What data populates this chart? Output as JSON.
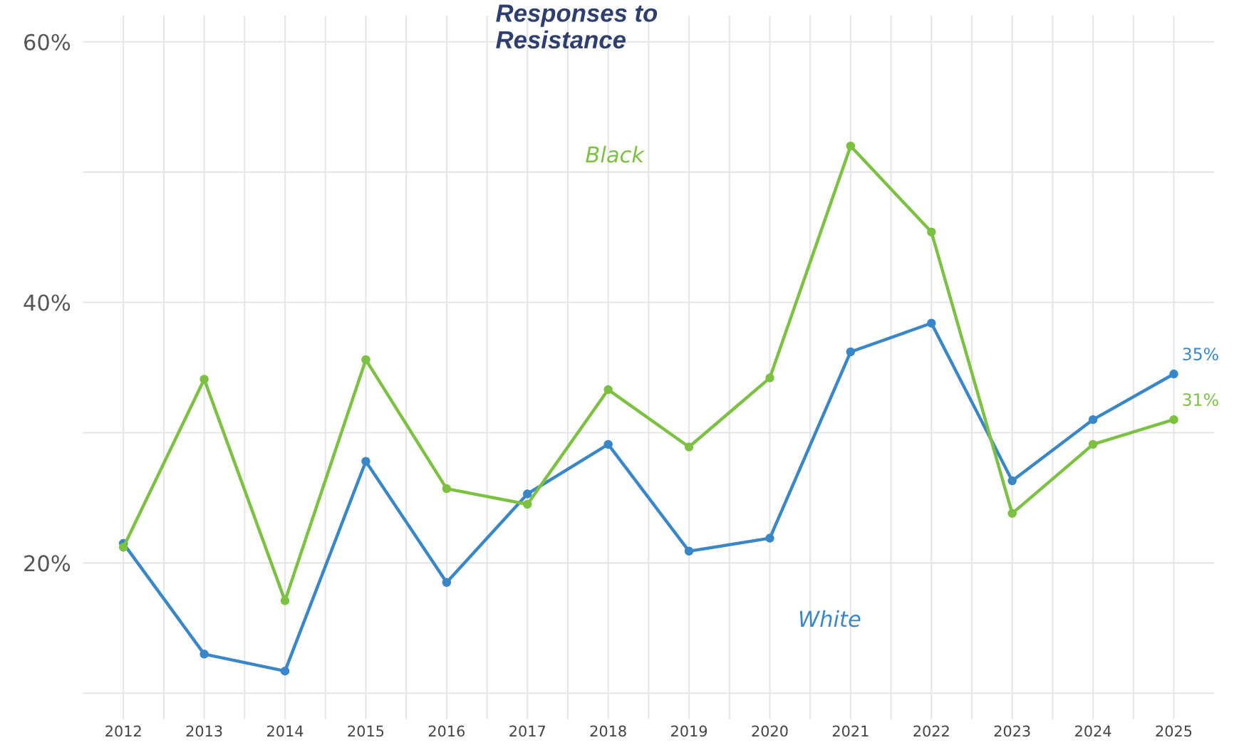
{
  "chart_data": {
    "type": "line",
    "title": "Responses to\nResistance",
    "x": [
      2012,
      2013,
      2014,
      2015,
      2016,
      2017,
      2018,
      2019,
      2020,
      2021,
      2022,
      2023,
      2024,
      2025
    ],
    "series": [
      {
        "name": "Black",
        "color": "#7dc142",
        "values": [
          21.2,
          34.1,
          17.1,
          35.6,
          25.7,
          24.5,
          33.3,
          28.9,
          34.2,
          52.0,
          45.4,
          23.8,
          29.1,
          31.0
        ]
      },
      {
        "name": "White",
        "color": "#3a87c8",
        "values": [
          21.5,
          13.0,
          11.7,
          27.8,
          18.5,
          25.3,
          29.1,
          20.9,
          21.9,
          36.2,
          38.4,
          26.3,
          31.0,
          34.5
        ]
      }
    ],
    "annotations": [
      {
        "text": "35%",
        "x": 2025,
        "y": 34.5
      },
      {
        "text": "31%",
        "x": 2025,
        "y": 31.0
      }
    ],
    "xlim": [
      2011.5,
      2025.5
    ],
    "xticks": [
      2012,
      {
        "value": 2012.5,
        "label": null
      },
      2013,
      {
        "value": 2013.5,
        "label": null
      },
      2014,
      {
        "value": 2014.5,
        "label": null
      },
      2015,
      {
        "value": 2015.5,
        "label": null
      },
      2016,
      {
        "value": 2016.5,
        "label": null
      },
      2017,
      {
        "value": 2017.5,
        "label": null
      },
      2018,
      {
        "value": 2018.5,
        "label": null
      },
      2019,
      {
        "value": 2019.5,
        "label": null
      },
      2020,
      {
        "value": 2020.5,
        "label": null
      },
      2021,
      {
        "value": 2021.5,
        "label": null
      },
      2022,
      {
        "value": 2022.5,
        "label": null
      },
      2023,
      {
        "value": 2023.5,
        "label": null
      },
      2024,
      {
        "value": 2024.5,
        "label": null
      },
      2025
    ],
    "ylim": [
      8,
      62
    ],
    "yticks": [
      {
        "value": 10,
        "label": null
      },
      {
        "value": 20,
        "label": "20%"
      },
      {
        "value": 30,
        "label": null
      },
      {
        "value": 40,
        "label": "40%"
      },
      {
        "value": 50,
        "label": null
      },
      {
        "value": 60,
        "label": "60%"
      }
    ],
    "grid": true,
    "marker": "circle",
    "line_style": "solid",
    "legend": false
  }
}
